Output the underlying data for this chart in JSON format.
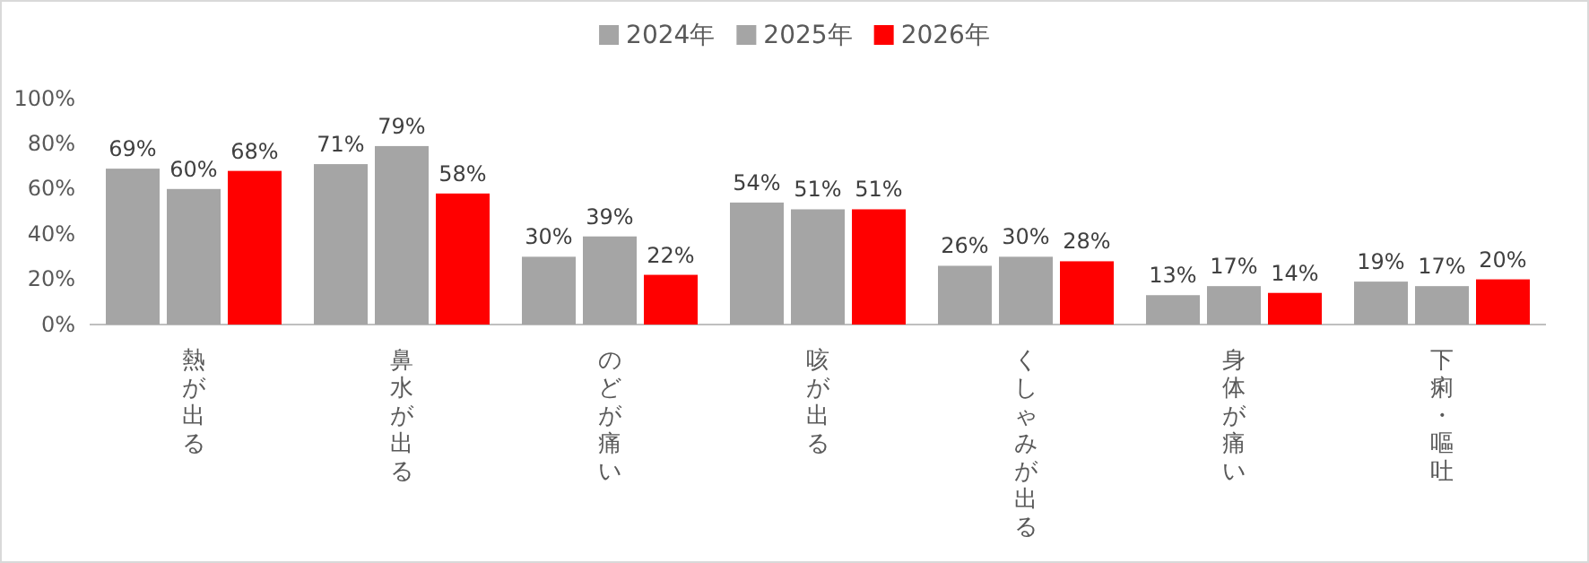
{
  "chart_data": {
    "type": "bar",
    "categories": [
      "熱が出る",
      "鼻水が出る",
      "のどが痛い",
      "咳が出る",
      "くしゃみが出る",
      "身体が痛い",
      "下痢・嘔吐"
    ],
    "series": [
      {
        "name": "2024年",
        "color": "#a5a5a5",
        "values": [
          69,
          71,
          30,
          54,
          26,
          13,
          19
        ]
      },
      {
        "name": "2025年",
        "color": "#a5a5a5",
        "values": [
          60,
          79,
          39,
          51,
          30,
          17,
          17
        ]
      },
      {
        "name": "2026年",
        "color": "#ff0000",
        "values": [
          68,
          58,
          22,
          51,
          28,
          14,
          20
        ]
      }
    ],
    "ylim": [
      0,
      100
    ],
    "yticks": [
      {
        "value": 0,
        "label": "0%"
      },
      {
        "value": 20,
        "label": "20%"
      },
      {
        "value": 40,
        "label": "40%"
      },
      {
        "value": 60,
        "label": "60%"
      },
      {
        "value": 80,
        "label": "80%"
      },
      {
        "value": 100,
        "label": "100%"
      }
    ],
    "value_labels": [
      [
        "69%",
        "71%",
        "30%",
        "54%",
        "26%",
        "13%",
        "19%"
      ],
      [
        "60%",
        "79%",
        "39%",
        "51%",
        "30%",
        "17%",
        "17%"
      ],
      [
        "68%",
        "58%",
        "22%",
        "51%",
        "28%",
        "14%",
        "20%"
      ]
    ],
    "grid": false,
    "legend": "top"
  }
}
